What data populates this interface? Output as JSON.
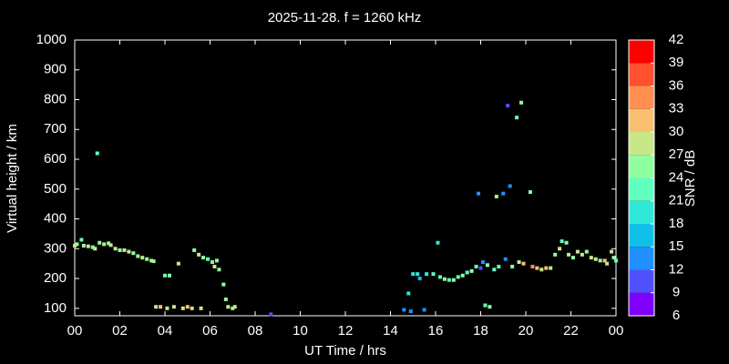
{
  "chart_data": {
    "type": "scatter",
    "title": "2025-11-28. f = 1260 kHz",
    "xlabel": "UT Time / hrs",
    "ylabel": "Virtual height / km",
    "xlim": [
      0,
      24
    ],
    "ylim": [
      75,
      1000
    ],
    "xticks": [
      {
        "value": 0,
        "label": "00"
      },
      {
        "value": 2,
        "label": "02"
      },
      {
        "value": 4,
        "label": "04"
      },
      {
        "value": 6,
        "label": "06"
      },
      {
        "value": 8,
        "label": "08"
      },
      10,
      12,
      14,
      16,
      18,
      20,
      22,
      {
        "value": 24,
        "label": "00"
      }
    ],
    "yticks": [
      100,
      200,
      300,
      400,
      500,
      600,
      700,
      800,
      900,
      1000
    ],
    "colorbar": {
      "label": "SNR / dB",
      "lim": [
        6,
        42
      ],
      "ticks": [
        6,
        9,
        12,
        15,
        18,
        21,
        24,
        27,
        30,
        33,
        36,
        39,
        42
      ],
      "colors": [
        "#8000ff",
        "#5050ff",
        "#2090ff",
        "#10c0e8",
        "#30e8d8",
        "#60ffc0",
        "#90ffa0",
        "#c8e888",
        "#f8c070",
        "#ff9050",
        "#ff5030",
        "#ff0000"
      ]
    },
    "x": [
      0.0,
      0.1,
      0.3,
      0.4,
      0.6,
      0.8,
      0.9,
      1.0,
      1.1,
      1.3,
      1.5,
      1.6,
      1.8,
      2.0,
      2.2,
      2.4,
      2.6,
      2.8,
      3.0,
      3.2,
      3.4,
      3.5,
      3.6,
      3.8,
      4.0,
      4.1,
      4.2,
      4.4,
      4.6,
      4.8,
      5.0,
      5.2,
      5.3,
      5.5,
      5.6,
      5.7,
      5.9,
      6.1,
      6.2,
      6.3,
      6.4,
      6.6,
      6.7,
      6.8,
      7.0,
      7.1,
      8.7,
      14.6,
      14.8,
      14.9,
      15.0,
      15.2,
      15.3,
      15.5,
      15.6,
      15.9,
      16.1,
      16.2,
      16.4,
      16.6,
      16.8,
      17.0,
      17.2,
      17.4,
      17.6,
      17.8,
      17.9,
      18.0,
      18.1,
      18.2,
      18.3,
      18.4,
      18.6,
      18.7,
      18.8,
      19.0,
      19.1,
      19.2,
      19.3,
      19.4,
      19.6,
      19.7,
      19.8,
      19.9,
      20.2,
      20.3,
      20.5,
      20.7,
      20.9,
      21.1,
      21.3,
      21.5,
      21.6,
      21.8,
      21.9,
      22.1,
      22.3,
      22.5,
      22.7,
      22.9,
      23.1,
      23.3,
      23.5,
      23.6,
      23.8,
      23.9,
      24.0
    ],
    "values": [
      310,
      315,
      330,
      310,
      308,
      305,
      300,
      620,
      320,
      315,
      318,
      312,
      300,
      295,
      295,
      290,
      285,
      275,
      270,
      265,
      260,
      258,
      105,
      105,
      210,
      100,
      210,
      105,
      250,
      100,
      105,
      100,
      295,
      280,
      100,
      270,
      265,
      255,
      240,
      260,
      230,
      180,
      130,
      105,
      100,
      105,
      80,
      95,
      150,
      90,
      215,
      215,
      200,
      95,
      215,
      215,
      320,
      205,
      198,
      195,
      195,
      205,
      210,
      220,
      225,
      240,
      485,
      235,
      255,
      110,
      245,
      105,
      230,
      475,
      240,
      485,
      265,
      780,
      510,
      240,
      740,
      255,
      790,
      250,
      490,
      240,
      235,
      230,
      235,
      235,
      280,
      300,
      325,
      320,
      280,
      270,
      290,
      280,
      290,
      270,
      265,
      260,
      260,
      250,
      290,
      270,
      260
    ],
    "snr": [
      27,
      24,
      21,
      24,
      27,
      24,
      27,
      21,
      24,
      27,
      24,
      27,
      27,
      24,
      27,
      27,
      24,
      24,
      27,
      24,
      27,
      24,
      27,
      30,
      21,
      27,
      24,
      27,
      27,
      27,
      30,
      27,
      24,
      27,
      27,
      24,
      21,
      24,
      27,
      24,
      24,
      24,
      24,
      27,
      24,
      27,
      9,
      12,
      18,
      12,
      18,
      18,
      15,
      12,
      18,
      21,
      18,
      21,
      24,
      21,
      24,
      21,
      24,
      21,
      24,
      21,
      12,
      9,
      12,
      21,
      24,
      24,
      21,
      24,
      21,
      12,
      12,
      9,
      12,
      24,
      21,
      27,
      24,
      30,
      24,
      33,
      30,
      27,
      30,
      27,
      24,
      27,
      21,
      24,
      27,
      24,
      27,
      27,
      24,
      27,
      27,
      24,
      30,
      27,
      27,
      24,
      21
    ]
  }
}
